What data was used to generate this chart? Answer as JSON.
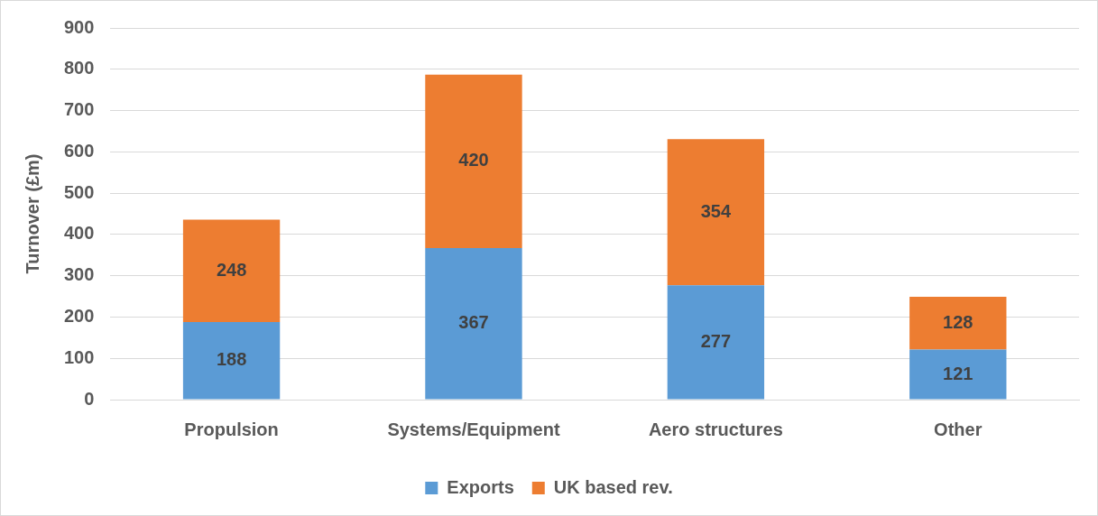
{
  "chart_data": {
    "type": "bar",
    "stacked": true,
    "ylabel": "Turnover (£m)",
    "categories": [
      "Propulsion",
      "Systems/Equipment",
      "Aero structures",
      "Other"
    ],
    "series": [
      {
        "name": "Exports",
        "color": "#5b9bd5",
        "values": [
          188,
          367,
          277,
          121
        ]
      },
      {
        "name": "UK based rev.",
        "color": "#ed7d31",
        "values": [
          248,
          420,
          354,
          128
        ]
      }
    ],
    "ylim": [
      0,
      900
    ],
    "yticks": [
      0,
      100,
      200,
      300,
      400,
      500,
      600,
      700,
      800,
      900
    ],
    "grid": "y",
    "legend": "bottom",
    "data_labels": true
  }
}
